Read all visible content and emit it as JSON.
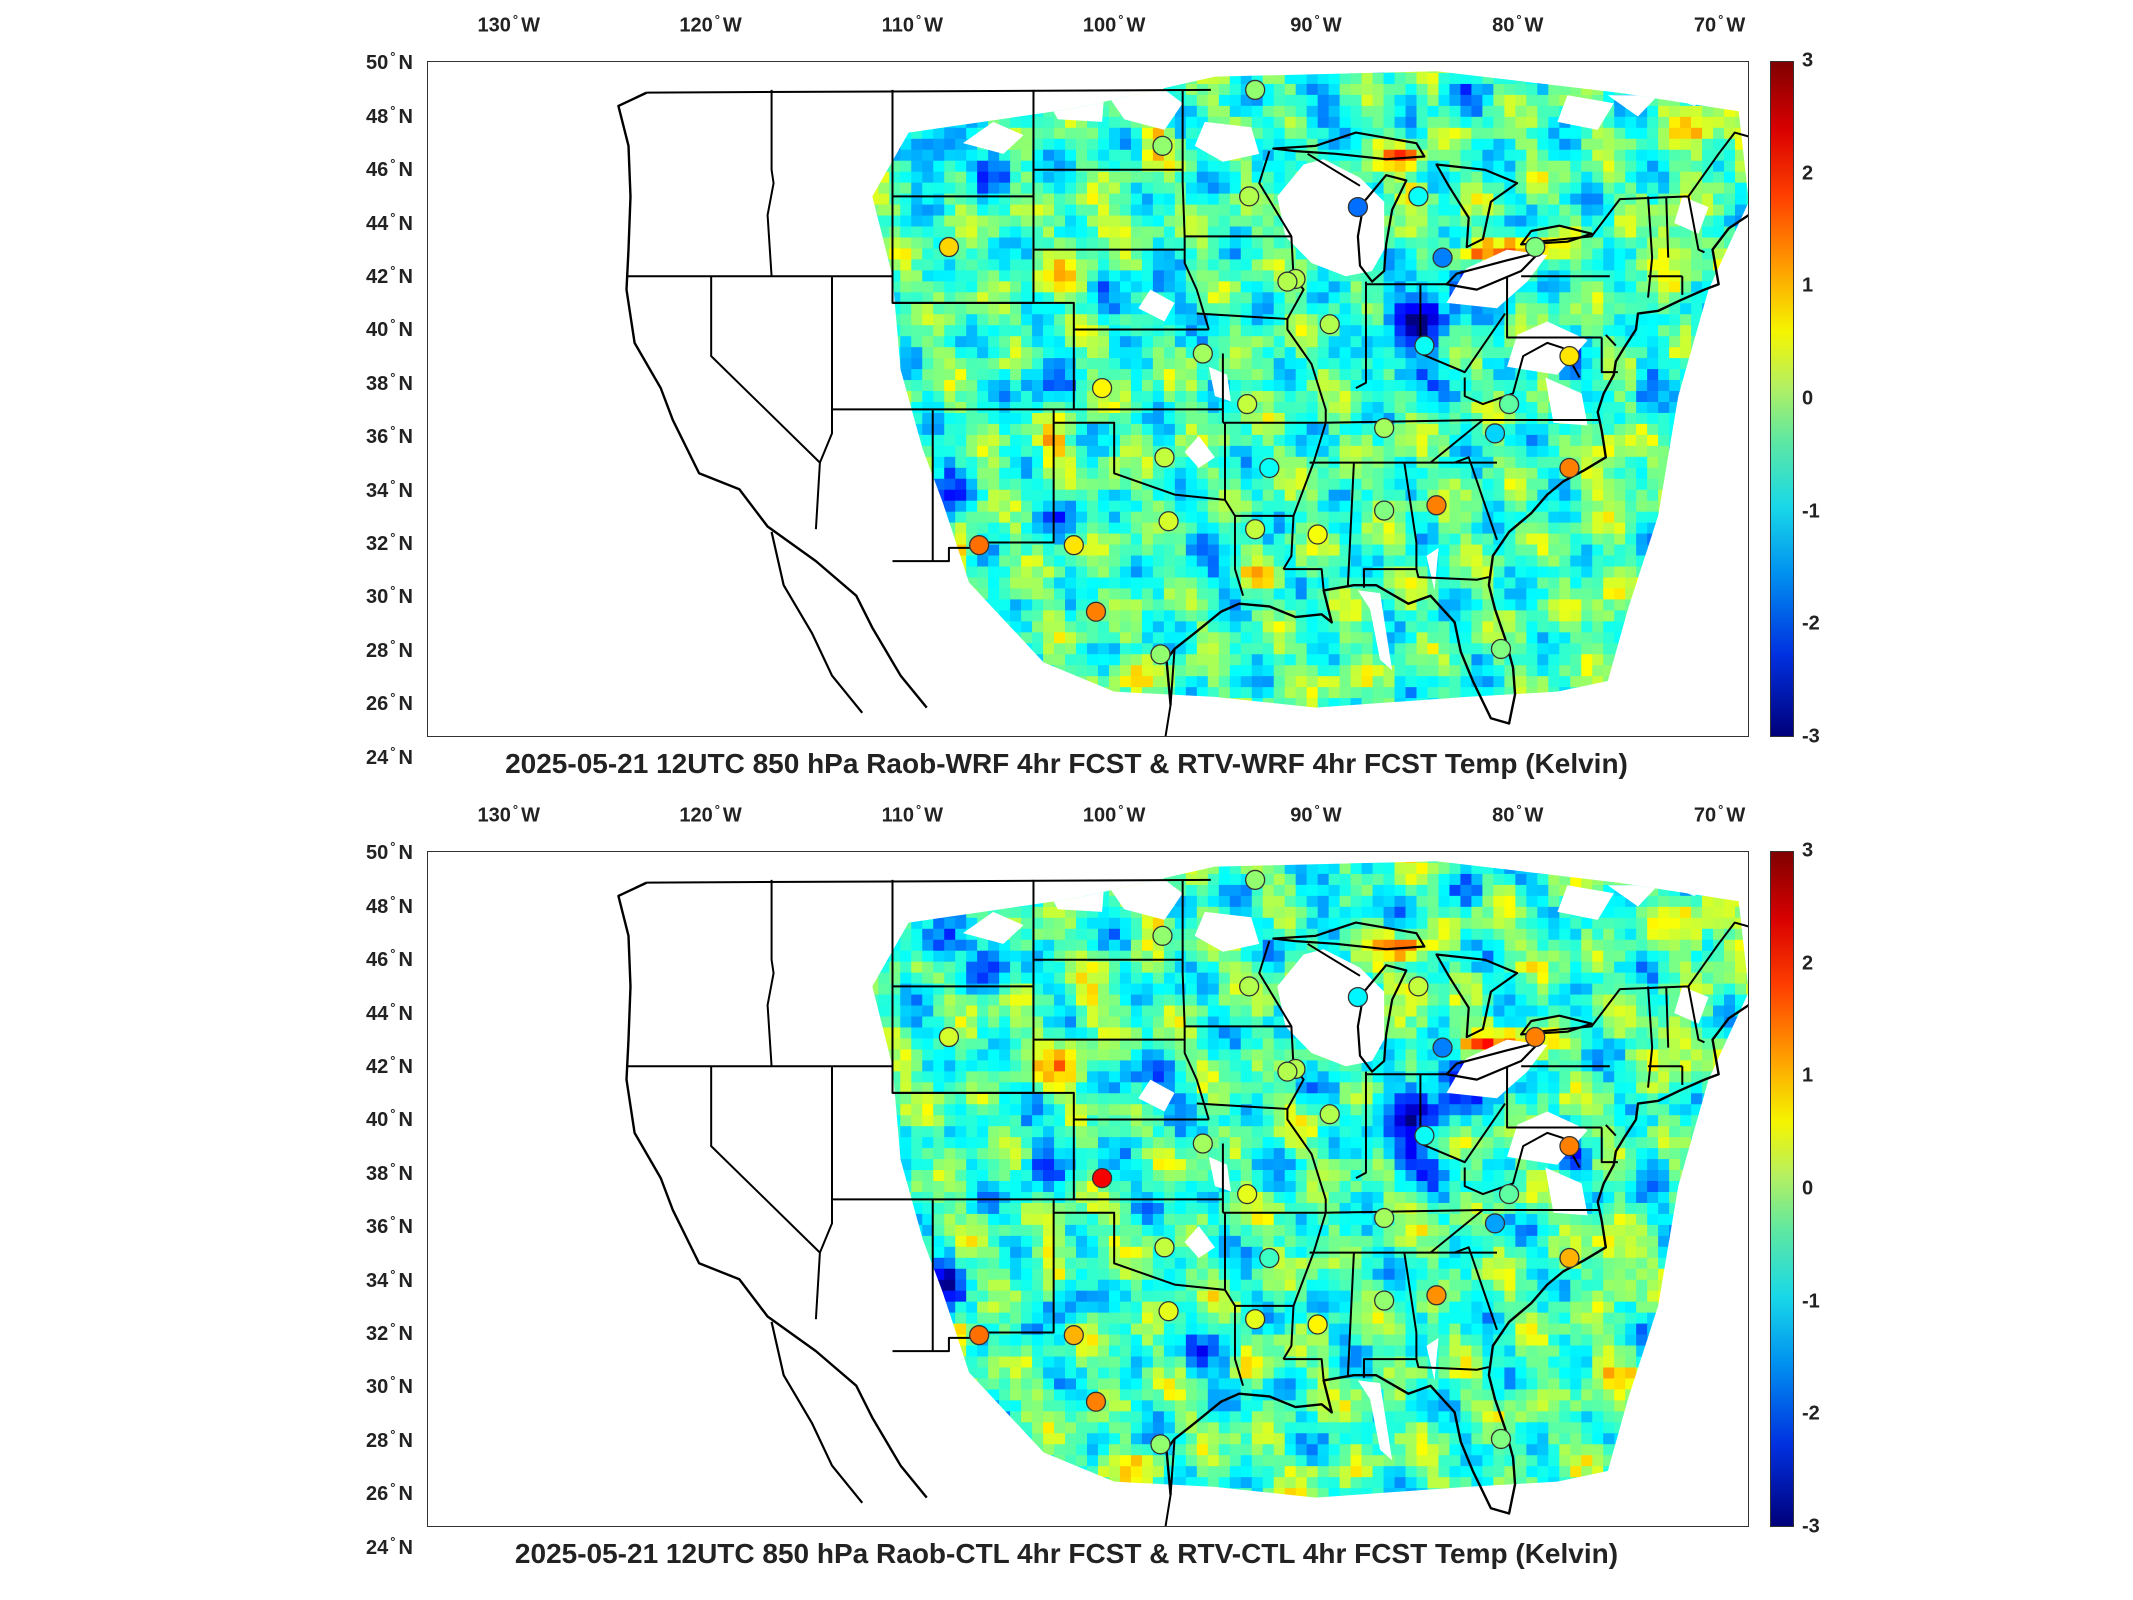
{
  "lon_ticks": [
    "130",
    "120",
    "110",
    "100",
    "90",
    "80",
    "70"
  ],
  "lon_suffix": "W",
  "lat_ticks": [
    "50",
    "48",
    "46",
    "44",
    "42",
    "40",
    "38",
    "36",
    "34",
    "32",
    "30",
    "28",
    "26",
    "24"
  ],
  "lat_suffix": "N",
  "colorbar": {
    "ticks": [
      "3",
      "2",
      "1",
      "0",
      "-1",
      "-2",
      "-3"
    ],
    "range": [
      -3,
      3
    ],
    "colormap": "jet",
    "colors": [
      "#800000",
      "#ff4000",
      "#f5f500",
      "#60e8a0",
      "#18d8e8",
      "#0030e0",
      "#00007a"
    ]
  },
  "panels": [
    {
      "title": "2025-05-21 12UTC 850 hPa Raob-WRF 4hr FCST & RTV-WRF 4hr FCST Temp (Kelvin)",
      "stations": [
        {
          "lon": -97.6,
          "lat": 46.9,
          "value": 0.1
        },
        {
          "lon": -108.2,
          "lat": 43.1,
          "value": 1.0
        },
        {
          "lon": -93.3,
          "lat": 45.0,
          "value": 0.3
        },
        {
          "lon": -87.9,
          "lat": 44.6,
          "value": -1.6
        },
        {
          "lon": -84.9,
          "lat": 45.0,
          "value": -0.7
        },
        {
          "lon": -83.7,
          "lat": 42.7,
          "value": -1.5
        },
        {
          "lon": -79.1,
          "lat": 43.1,
          "value": 0.0
        },
        {
          "lon": -91.0,
          "lat": 41.9,
          "value": 0.3
        },
        {
          "lon": -89.3,
          "lat": 40.2,
          "value": 0.3
        },
        {
          "lon": -95.6,
          "lat": 39.1,
          "value": 0.2
        },
        {
          "lon": -100.6,
          "lat": 37.8,
          "value": 0.8
        },
        {
          "lon": -84.6,
          "lat": 39.4,
          "value": -0.7
        },
        {
          "lon": -77.4,
          "lat": 39.0,
          "value": 0.9
        },
        {
          "lon": -93.4,
          "lat": 37.2,
          "value": 0.4
        },
        {
          "lon": -86.6,
          "lat": 36.3,
          "value": 0.2
        },
        {
          "lon": -80.4,
          "lat": 37.2,
          "value": -0.2
        },
        {
          "lon": -81.1,
          "lat": 36.1,
          "value": -1.0
        },
        {
          "lon": -97.5,
          "lat": 35.2,
          "value": 0.4
        },
        {
          "lon": -92.3,
          "lat": 34.8,
          "value": -0.7
        },
        {
          "lon": -77.4,
          "lat": 34.8,
          "value": 1.5
        },
        {
          "lon": -97.3,
          "lat": 32.8,
          "value": 0.5
        },
        {
          "lon": -93.0,
          "lat": 32.5,
          "value": 0.4
        },
        {
          "lon": -89.9,
          "lat": 32.3,
          "value": 0.7
        },
        {
          "lon": -86.6,
          "lat": 33.2,
          "value": 0.0
        },
        {
          "lon": -84.0,
          "lat": 33.4,
          "value": 1.5
        },
        {
          "lon": -102.0,
          "lat": 31.9,
          "value": 0.9
        },
        {
          "lon": -106.7,
          "lat": 31.9,
          "value": 1.6
        },
        {
          "lon": -100.9,
          "lat": 29.4,
          "value": 1.5
        },
        {
          "lon": -97.7,
          "lat": 27.8,
          "value": 0.1
        },
        {
          "lon": -80.8,
          "lat": 28.0,
          "value": 0.0
        },
        {
          "lon": -91.4,
          "lat": 41.8,
          "value": 0.3
        },
        {
          "lon": -93.0,
          "lat": 49.0,
          "value": 0.1
        }
      ]
    },
    {
      "title": "2025-05-21 12UTC 850 hPa Raob-CTL 4hr FCST & RTV-CTL 4hr FCST Temp (Kelvin)",
      "stations": [
        {
          "lon": -97.6,
          "lat": 46.9,
          "value": 0.1
        },
        {
          "lon": -108.2,
          "lat": 43.1,
          "value": 0.5
        },
        {
          "lon": -93.3,
          "lat": 45.0,
          "value": 0.3
        },
        {
          "lon": -87.9,
          "lat": 44.6,
          "value": -0.8
        },
        {
          "lon": -84.9,
          "lat": 45.0,
          "value": 0.4
        },
        {
          "lon": -83.7,
          "lat": 42.7,
          "value": -1.5
        },
        {
          "lon": -79.1,
          "lat": 43.1,
          "value": 1.5
        },
        {
          "lon": -91.0,
          "lat": 41.9,
          "value": 0.3
        },
        {
          "lon": -89.3,
          "lat": 40.2,
          "value": 0.3
        },
        {
          "lon": -95.6,
          "lat": 39.1,
          "value": 0.2
        },
        {
          "lon": -100.6,
          "lat": 37.8,
          "value": 2.3
        },
        {
          "lon": -84.6,
          "lat": 39.4,
          "value": -0.7
        },
        {
          "lon": -77.4,
          "lat": 39.0,
          "value": 1.5
        },
        {
          "lon": -93.4,
          "lat": 37.2,
          "value": 0.6
        },
        {
          "lon": -86.6,
          "lat": 36.3,
          "value": 0.2
        },
        {
          "lon": -80.4,
          "lat": 37.2,
          "value": -0.2
        },
        {
          "lon": -81.1,
          "lat": 36.1,
          "value": -1.3
        },
        {
          "lon": -97.5,
          "lat": 35.2,
          "value": 0.4
        },
        {
          "lon": -92.3,
          "lat": 34.8,
          "value": -0.4
        },
        {
          "lon": -77.4,
          "lat": 34.8,
          "value": 1.2
        },
        {
          "lon": -97.3,
          "lat": 32.8,
          "value": 0.6
        },
        {
          "lon": -93.0,
          "lat": 32.5,
          "value": 0.6
        },
        {
          "lon": -89.9,
          "lat": 32.3,
          "value": 0.8
        },
        {
          "lon": -86.6,
          "lat": 33.2,
          "value": 0.1
        },
        {
          "lon": -84.0,
          "lat": 33.4,
          "value": 1.4
        },
        {
          "lon": -102.0,
          "lat": 31.9,
          "value": 1.2
        },
        {
          "lon": -106.7,
          "lat": 31.9,
          "value": 1.6
        },
        {
          "lon": -100.9,
          "lat": 29.4,
          "value": 1.5
        },
        {
          "lon": -97.7,
          "lat": 27.8,
          "value": 0.1
        },
        {
          "lon": -80.8,
          "lat": 28.0,
          "value": 0.0
        },
        {
          "lon": -91.4,
          "lat": 41.8,
          "value": 0.3
        },
        {
          "lon": -93.0,
          "lat": 49.0,
          "value": 0.1
        }
      ]
    }
  ]
}
